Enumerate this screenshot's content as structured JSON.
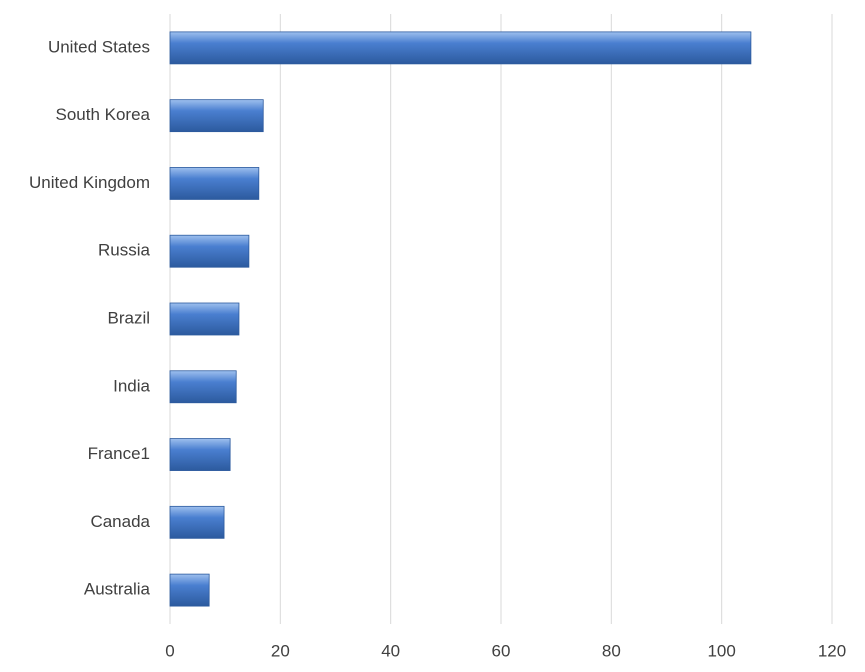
{
  "chart_data": {
    "type": "bar",
    "orientation": "horizontal",
    "categories": [
      "United States",
      "South Korea",
      "United Kingdom",
      "Russia",
      "Brazil",
      "India",
      "France1",
      "Canada",
      "Australia"
    ],
    "values": [
      105.3,
      16.9,
      16.1,
      14.3,
      12.5,
      12.0,
      10.9,
      9.8,
      7.1
    ],
    "color": "#4a7fd0",
    "xlim": [
      0,
      120
    ],
    "xticks": [
      0,
      20,
      40,
      60,
      80,
      100,
      120
    ],
    "grid": true
  }
}
